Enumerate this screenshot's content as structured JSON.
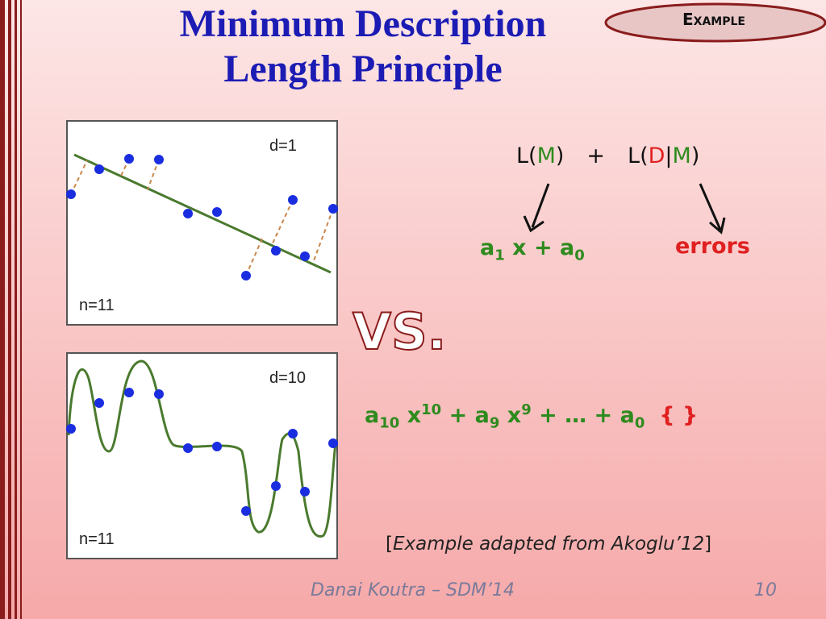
{
  "title": [
    "Minimum Description",
    "Length Principle"
  ],
  "badge": "Example",
  "plots": [
    {
      "label_d": "d=1",
      "label_n": "n=11"
    },
    {
      "label_d": "d=10",
      "label_n": "n=11"
    }
  ],
  "cost_formula": [
    "L(",
    "M",
    ")",
    "+",
    "L(",
    "D",
    "|",
    "M",
    ")"
  ],
  "model_term": [
    "a",
    "1",
    " x + a",
    "0"
  ],
  "error_term": "errors",
  "versus": "VS.",
  "poly_formula": [
    "a",
    "10",
    " x",
    "10",
    " + a",
    "9",
    " x",
    "9",
    " + … + a",
    "0"
  ],
  "empty_set": "{ }",
  "citation": [
    "[",
    "Example adapted from Akoglu’12",
    "]"
  ],
  "footer": {
    "author": "Danai Koutra – SDM’14",
    "page": "10"
  }
}
